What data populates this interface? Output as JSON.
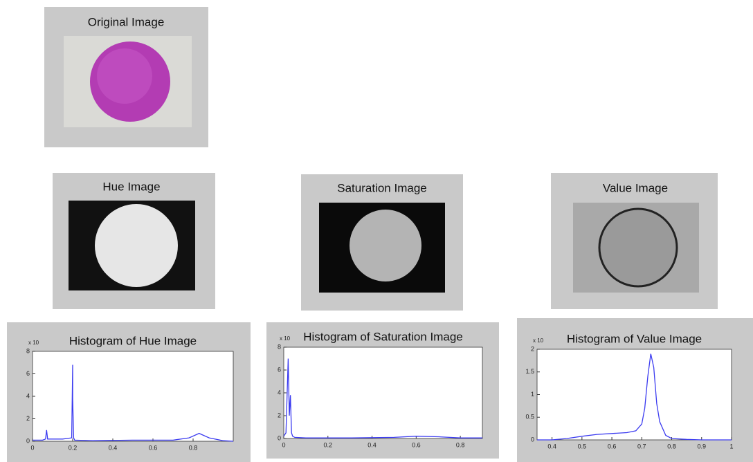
{
  "images": [
    {
      "title": "Original Image"
    },
    {
      "title": "Hue Image"
    },
    {
      "title": "Saturation Image"
    },
    {
      "title": "Value Image"
    }
  ],
  "chart_data": [
    {
      "type": "line",
      "title": "Histogram of Hue Image",
      "y_exponent_label": "x 10",
      "color": "#3b3bf0",
      "x": [
        0,
        0.05,
        0.065,
        0.07,
        0.075,
        0.1,
        0.15,
        0.195,
        0.2,
        0.2,
        0.205,
        0.21,
        0.3,
        0.5,
        0.7,
        0.78,
        0.83,
        0.88,
        0.95,
        1
      ],
      "values": [
        0.1,
        0.1,
        0.2,
        1,
        0.2,
        0.2,
        0.2,
        0.3,
        6.8,
        3.8,
        0.3,
        0.1,
        0.05,
        0.1,
        0.1,
        0.3,
        0.7,
        0.3,
        0.05,
        0
      ],
      "xlim": [
        0,
        1
      ],
      "xticks": [
        0,
        0.2,
        0.4,
        0.6,
        0.8
      ],
      "ylim": [
        0,
        8
      ],
      "yticks": [
        0,
        2,
        4,
        6,
        8
      ]
    },
    {
      "type": "line",
      "title": "Histogram of Saturation Image",
      "y_exponent_label": "x 10",
      "color": "#3b3bf0",
      "x": [
        0,
        0.01,
        0.02,
        0.025,
        0.03,
        0.035,
        0.04,
        0.05,
        0.1,
        0.3,
        0.5,
        0.6,
        0.7,
        0.8,
        0.9
      ],
      "values": [
        0.2,
        0.5,
        7,
        2,
        3.8,
        0.5,
        0.2,
        0.1,
        0.05,
        0.05,
        0.1,
        0.2,
        0.15,
        0.05,
        0.05
      ],
      "xlim": [
        0,
        0.9
      ],
      "xticks": [
        0,
        0.2,
        0.4,
        0.6,
        0.8
      ],
      "ylim": [
        0,
        8
      ],
      "yticks": [
        0,
        2,
        4,
        6,
        8
      ]
    },
    {
      "type": "line",
      "title": "Histogram of Value Image",
      "y_exponent_label": "x 10",
      "color": "#3b3bf0",
      "x": [
        0.35,
        0.4,
        0.45,
        0.5,
        0.55,
        0.6,
        0.65,
        0.68,
        0.7,
        0.71,
        0.72,
        0.73,
        0.74,
        0.75,
        0.76,
        0.78,
        0.8,
        0.85,
        0.9,
        1
      ],
      "values": [
        0,
        0,
        0.03,
        0.08,
        0.12,
        0.14,
        0.16,
        0.2,
        0.35,
        0.7,
        1.4,
        1.9,
        1.6,
        0.8,
        0.4,
        0.1,
        0.03,
        0.01,
        0,
        0
      ],
      "xlim": [
        0.35,
        1
      ],
      "xticks": [
        0.4,
        0.5,
        0.6,
        0.7,
        0.8,
        0.9,
        1
      ],
      "ylim": [
        0,
        2
      ],
      "yticks": [
        0,
        0.5,
        1,
        1.5,
        2
      ]
    }
  ]
}
